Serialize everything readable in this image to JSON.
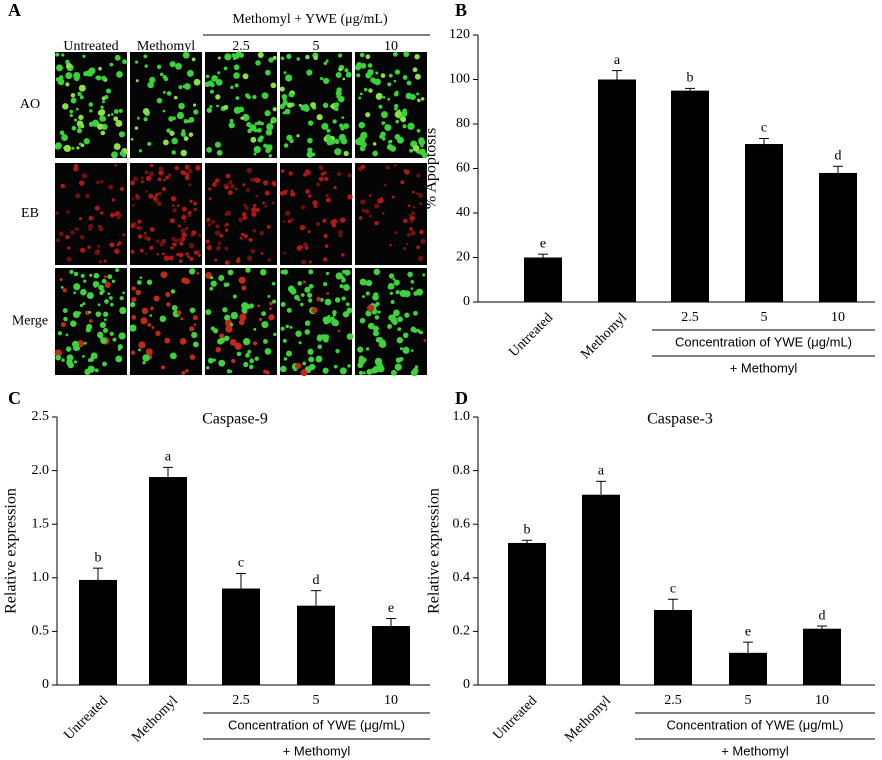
{
  "panel_a": {
    "panel_label": "A",
    "group_label": "Methomyl + YWE (μg/mL)",
    "columns": [
      "Untreated",
      "Methomyl",
      "2.5",
      "5",
      "10"
    ],
    "rows": [
      "AO",
      "EB",
      "Merge"
    ]
  },
  "chart_data": [
    {
      "type": "bar",
      "panel_label": "B",
      "y_label": "% Apoptosis",
      "categories": [
        "Untreated",
        "Methomyl",
        "2.5",
        "5",
        "10"
      ],
      "values": [
        20,
        100,
        95,
        71,
        58
      ],
      "errors": [
        1.5,
        4,
        1,
        2.5,
        3
      ],
      "letters": [
        "e",
        "a",
        "b",
        "c",
        "d"
      ],
      "group_label": "Concentration of YWE (μg/mL)",
      "group_sublabel": "+ Methomyl",
      "color": "#000000",
      "ylim": [
        0,
        120
      ],
      "yticks": [
        0,
        20,
        40,
        60,
        80,
        100,
        120
      ]
    },
    {
      "type": "bar",
      "panel_label": "C",
      "title": "Caspase-9",
      "y_label": "Relative expression",
      "categories": [
        "Untreated",
        "Methomyl",
        "2.5",
        "5",
        "10"
      ],
      "values": [
        0.98,
        1.94,
        0.9,
        0.74,
        0.55
      ],
      "errors": [
        0.11,
        0.09,
        0.14,
        0.14,
        0.07
      ],
      "letters": [
        "b",
        "a",
        "c",
        "d",
        "e"
      ],
      "group_label": "Concentration of YWE (μg/mL)",
      "group_sublabel": "+ Methomyl",
      "color": "#000000",
      "ylim": [
        0,
        2.5
      ],
      "yticks": [
        0,
        0.5,
        {
          "value": 1,
          "label": "1.0"
        },
        1.5,
        {
          "value": 2,
          "label": "2.0"
        },
        2.5
      ]
    },
    {
      "type": "bar",
      "panel_label": "D",
      "title": "Caspase-3",
      "y_label": "Relative expression",
      "categories": [
        "Untreated",
        "Methomyl",
        "2.5",
        "5",
        "10"
      ],
      "values": [
        0.53,
        0.71,
        0.28,
        0.12,
        0.21
      ],
      "errors": [
        0.01,
        0.05,
        0.04,
        0.04,
        0.01
      ],
      "letters": [
        "b",
        "a",
        "c",
        "e",
        "d"
      ],
      "group_label": "Concentration of YWE (μg/mL)",
      "group_sublabel": "+ Methomyl",
      "color": "#000000",
      "ylim": [
        0,
        1
      ],
      "yticks": [
        0,
        0.2,
        0.4,
        0.6,
        0.8,
        {
          "value": 1,
          "label": "1.0"
        }
      ]
    }
  ]
}
